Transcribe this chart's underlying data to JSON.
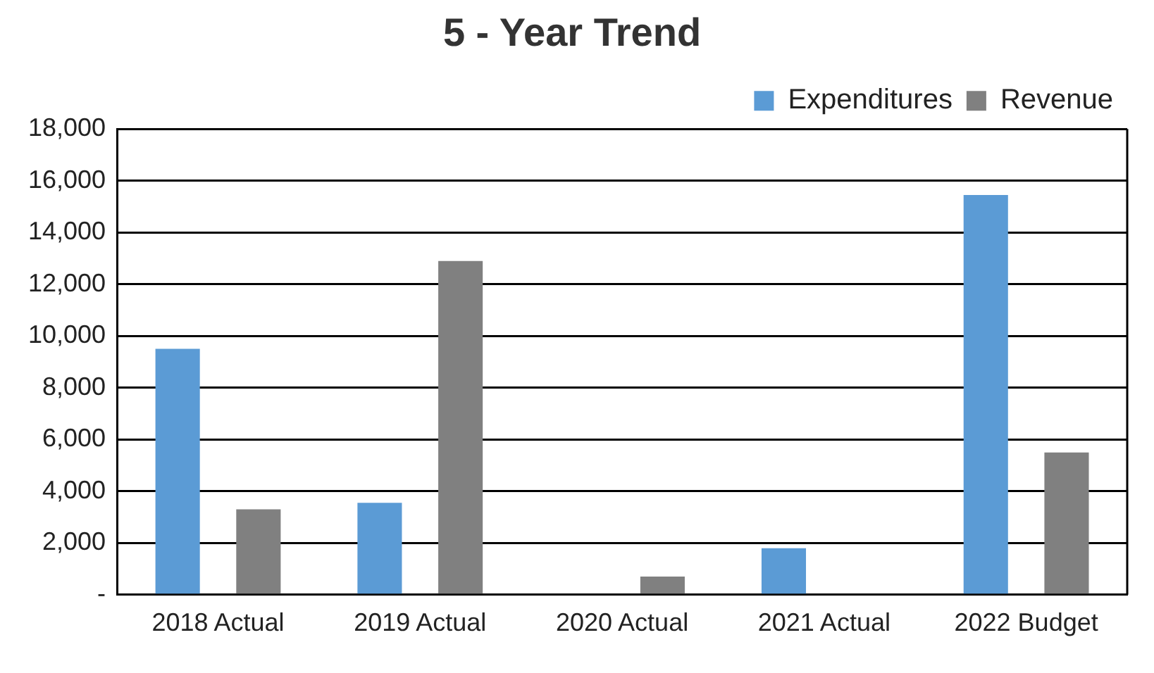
{
  "chart_data": {
    "type": "bar",
    "title": "5 - Year Trend",
    "categories": [
      "2018 Actual",
      "2019 Actual",
      "2020 Actual",
      "2021 Actual",
      "2022 Budget"
    ],
    "series": [
      {
        "name": "Expenditures",
        "color": "#5b9bd5",
        "values": [
          9500,
          3550,
          0,
          1800,
          15450
        ]
      },
      {
        "name": "Revenue",
        "color": "#808080",
        "values": [
          3300,
          12900,
          700,
          0,
          5500
        ]
      }
    ],
    "ylim": [
      0,
      18000
    ],
    "yticks": [
      {
        "value": 0,
        "label": "-"
      },
      {
        "value": 2000,
        "label": "2,000"
      },
      {
        "value": 4000,
        "label": "4,000"
      },
      {
        "value": 6000,
        "label": "6,000"
      },
      {
        "value": 8000,
        "label": "8,000"
      },
      {
        "value": 10000,
        "label": "10,000"
      },
      {
        "value": 12000,
        "label": "12,000"
      },
      {
        "value": 14000,
        "label": "14,000"
      },
      {
        "value": 16000,
        "label": "16,000"
      },
      {
        "value": 18000,
        "label": "18,000"
      }
    ],
    "grid": "y",
    "legend": "top right"
  }
}
